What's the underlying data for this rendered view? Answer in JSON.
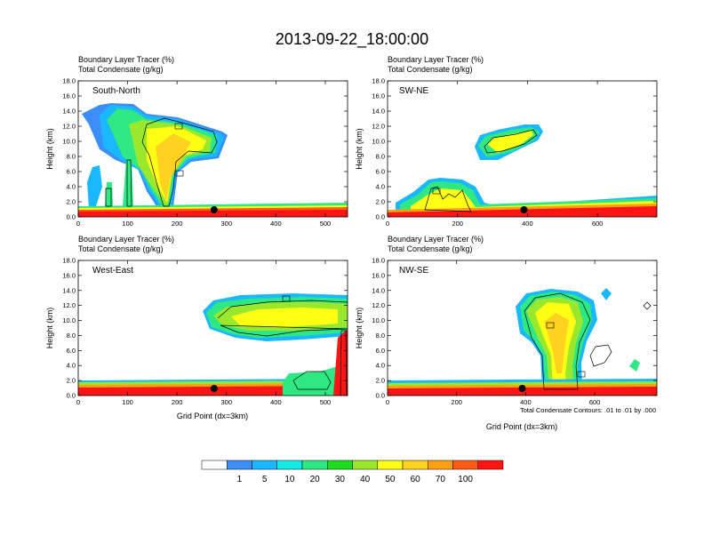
{
  "title": "2013-09-22_18:00:00",
  "colors": {
    "scale": [
      "#ffffff",
      "#3b8ef5",
      "#1ab8ff",
      "#14ebe6",
      "#2ee884",
      "#1fdc1f",
      "#9ae82e",
      "#ffff14",
      "#ffd21f",
      "#ff9f14",
      "#ff5b14",
      "#ff1414"
    ],
    "contour": "#000000"
  },
  "chart_data": [
    {
      "type": "heatmap",
      "id": "south-north",
      "panel_label": "South-North",
      "header_line1": "Boundary Layer Tracer   (%)",
      "header_line2": "Total Condensate   (g/kg)",
      "ylabel": "Height (km)",
      "xlabel": "",
      "ylim": [
        0,
        18
      ],
      "yticks": [
        "0.0",
        "2.0",
        "4.0",
        "6.0",
        "8.0",
        "10.0",
        "12.0",
        "14.0",
        "16.0",
        "18.0"
      ],
      "xlim": [
        0,
        545
      ],
      "xticks": [
        0,
        100,
        200,
        300,
        400,
        500
      ],
      "site_marker_x": 275,
      "note": ""
    },
    {
      "type": "heatmap",
      "id": "sw-ne",
      "panel_label": "SW-NE",
      "header_line1": "Boundary Layer Tracer   (%)",
      "header_line2": "Total Condensate   (g/kg)",
      "ylabel": "Height (km)",
      "xlabel": "",
      "ylim": [
        0,
        18
      ],
      "yticks": [
        "0.0",
        "2.0",
        "4.0",
        "6.0",
        "8.0",
        "10.0",
        "12.0",
        "14.0",
        "16.0",
        "18.0"
      ],
      "xlim": [
        0,
        770
      ],
      "xticks": [
        0,
        200,
        400,
        600
      ],
      "site_marker_x": 390,
      "note": ""
    },
    {
      "type": "heatmap",
      "id": "west-east",
      "panel_label": "West-East",
      "header_line1": "Boundary Layer Tracer   (%)",
      "header_line2": "Total Condensate   (g/kg)",
      "ylabel": "Height (km)",
      "xlabel": "Grid Point (dx=3km)",
      "ylim": [
        0,
        18
      ],
      "yticks": [
        "0.0",
        "2.0",
        "4.0",
        "6.0",
        "8.0",
        "10.0",
        "12.0",
        "14.0",
        "16.0",
        "18.0"
      ],
      "xlim": [
        0,
        545
      ],
      "xticks": [
        0,
        100,
        200,
        300,
        400,
        500
      ],
      "site_marker_x": 275,
      "note": ""
    },
    {
      "type": "heatmap",
      "id": "nw-se",
      "panel_label": "NW-SE",
      "header_line1": "Boundary Layer Tracer   (%)",
      "header_line2": "Total Condensate   (g/kg)",
      "ylabel": "Height (km)",
      "xlabel": "Grid Point (dx=3km)",
      "ylim": [
        0,
        18
      ],
      "yticks": [
        "0.0",
        "2.0",
        "4.0",
        "6.0",
        "8.0",
        "10.0",
        "12.0",
        "14.0",
        "16.0",
        "18.0"
      ],
      "xlim": [
        0,
        780
      ],
      "xticks": [
        0,
        200,
        400,
        600
      ],
      "site_marker_x": 390,
      "note": "Total Condensate Contours: .01 to .01 by .000"
    }
  ],
  "colorbar": {
    "labels": [
      "1",
      "5",
      "10",
      "20",
      "30",
      "40",
      "50",
      "60",
      "70",
      "100"
    ]
  }
}
